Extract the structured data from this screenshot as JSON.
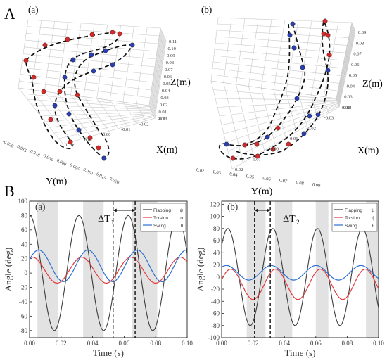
{
  "figure": {
    "row_a_label": "A",
    "row_b_label": "B"
  },
  "colors": {
    "red_marker": "#d42a2a",
    "blue_marker": "#2a3fb0",
    "flapping": "#3c3c3c",
    "torsion": "#e03a3a",
    "swing": "#2a6fd1",
    "shade": "#e2e2e2"
  },
  "chart_data": [
    {
      "type": "scatter",
      "panel": "(a)",
      "mode": "3d-trajectory",
      "xlabel": "X(m)",
      "ylabel": "Y(m)",
      "zlabel": "Z(m)",
      "x_ticks": [
        "-0.03",
        "-0.02",
        "-0.01",
        "0.00",
        "0.01",
        "0.02"
      ],
      "y_ticks": [
        "-0.020",
        "-0.015",
        "-0.010",
        "-0.005",
        "0.000",
        "0.005",
        "0.010",
        "0.015",
        "0.020"
      ],
      "z_ticks": [
        "0.00",
        "0.01",
        "0.02",
        "0.03",
        "0.04",
        "0.05",
        "0.06",
        "0.07",
        "0.08",
        "0.09",
        "0.10",
        "0.11"
      ],
      "grid": true,
      "trajectory_style": "dashed"
    },
    {
      "type": "scatter",
      "panel": "(b)",
      "mode": "3d-trajectory",
      "xlabel": "X(m)",
      "ylabel": "Y(m)",
      "zlabel": "Z(m)",
      "x_ticks": [
        "-0.04",
        "-0.03",
        "-0.02",
        "-0.01",
        "0.00",
        "0.01",
        "0.02"
      ],
      "y_ticks": [
        "0.02",
        "0.03",
        "0.04",
        "0.05",
        "0.06",
        "0.07",
        "0.08",
        "0.09"
      ],
      "z_ticks": [
        "0.02",
        "0.03",
        "0.04",
        "0.05",
        "0.06",
        "0.07",
        "0.08",
        "0.09"
      ],
      "grid": true,
      "trajectory_style": "dashed"
    },
    {
      "type": "line",
      "panel": "(a)",
      "xlabel": "Time (s)",
      "ylabel": "Angle (deg)",
      "xlim": [
        0,
        0.1
      ],
      "ylim": [
        -90,
        100
      ],
      "x_ticks": [
        "0.00",
        "0.02",
        "0.04",
        "0.06",
        "0.08",
        "0.10"
      ],
      "y_ticks": [
        "-80",
        "-60",
        "-40",
        "-20",
        "0",
        "20",
        "40",
        "60",
        "80",
        "100"
      ],
      "legend_position": "top-right",
      "annotation": {
        "text": "ΔT",
        "subscript": "1",
        "t_start": 0.053,
        "t_end": 0.067
      },
      "shaded_intervals": [
        [
          0.005,
          0.018
        ],
        [
          0.034,
          0.047
        ],
        [
          0.065,
          0.081
        ]
      ],
      "series": [
        {
          "name": "Flapping",
          "symbol": "ψ",
          "amp": 80,
          "offset": 0,
          "freq": 32,
          "phase": 1.55
        },
        {
          "name": "Torsion",
          "symbol": "ϕ",
          "amp": 18,
          "offset": 4,
          "freq": 32,
          "phase": 1.2
        },
        {
          "name": "Swing",
          "symbol": "θ",
          "amp": 22,
          "offset": 10,
          "freq": 32,
          "phase": 0.4
        }
      ]
    },
    {
      "type": "line",
      "panel": "(b)",
      "xlabel": "Time (s)",
      "ylabel": "Angle (deg)",
      "xlim": [
        0,
        0.1
      ],
      "ylim": [
        -100,
        125
      ],
      "x_ticks": [
        "0.00",
        "0.02",
        "0.04",
        "0.06",
        "0.08",
        "0.10"
      ],
      "y_ticks": [
        "-100",
        "-80",
        "-60",
        "-40",
        "-20",
        "0",
        "20",
        "40",
        "60",
        "80",
        "100",
        "120"
      ],
      "legend_position": "top-right",
      "annotation": {
        "text": "ΔT",
        "subscript": "2",
        "t_start": 0.021,
        "t_end": 0.031
      },
      "shaded_intervals": [
        [
          0.016,
          0.028
        ],
        [
          0.034,
          0.045
        ],
        [
          0.06,
          0.068
        ],
        [
          0.092,
          0.1
        ]
      ],
      "series": [
        {
          "name": "Flapping",
          "symbol": "ψ",
          "amp": 80,
          "offset": 0,
          "freq": 35,
          "phase": 0.7
        },
        {
          "name": "Torsion",
          "symbol": "ϕ",
          "amp": 25,
          "offset": -12,
          "freq": 35,
          "phase": 0.3
        },
        {
          "name": "Swing",
          "symbol": "θ",
          "amp": 12,
          "offset": 7,
          "freq": 35,
          "phase": 0.9
        }
      ]
    }
  ]
}
